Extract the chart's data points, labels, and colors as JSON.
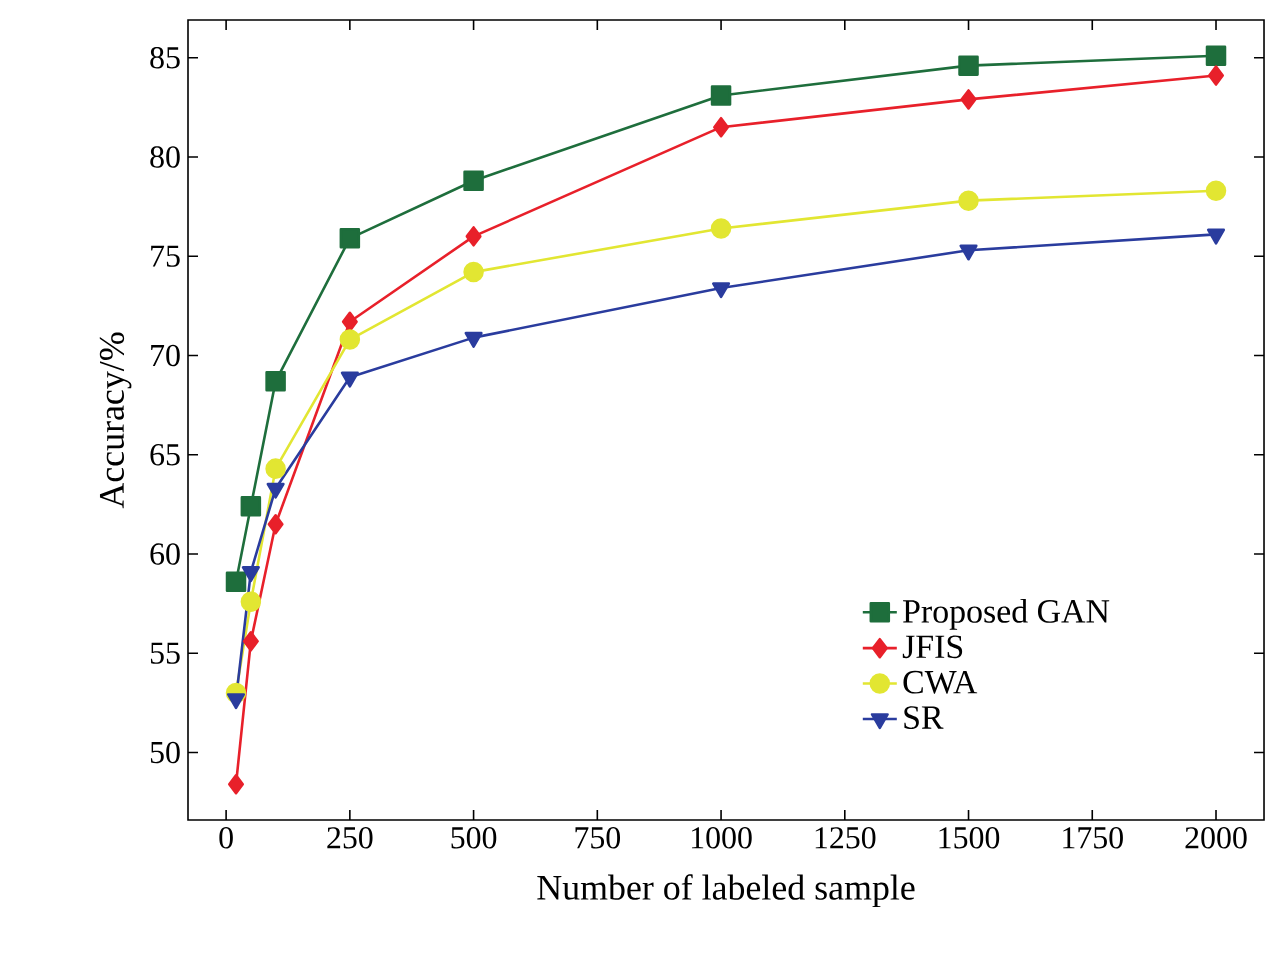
{
  "chart_data": {
    "type": "line",
    "xlabel": "Number of labeled sample",
    "ylabel": "Accuracy/%",
    "x": [
      20,
      50,
      100,
      250,
      500,
      1000,
      1500,
      2000
    ],
    "series": [
      {
        "name": "Proposed GAN",
        "color": "#1e6e3c",
        "marker": "square",
        "values": [
          58.6,
          62.4,
          68.7,
          75.9,
          78.8,
          83.1,
          84.6,
          85.1
        ]
      },
      {
        "name": "JFIS",
        "color": "#e8202a",
        "marker": "diamond",
        "values": [
          48.4,
          55.6,
          61.5,
          71.7,
          76.0,
          81.5,
          82.9,
          84.1
        ]
      },
      {
        "name": "CWA",
        "color": "#e2e632",
        "marker": "circle",
        "values": [
          53.0,
          57.6,
          64.3,
          70.8,
          74.2,
          76.4,
          77.8,
          78.3
        ]
      },
      {
        "name": "SR",
        "color": "#2a3c9e",
        "marker": "triangle",
        "values": [
          52.7,
          59.1,
          63.3,
          68.9,
          70.9,
          73.4,
          75.3,
          76.1
        ]
      }
    ],
    "xlim": [
      -77,
      2097
    ],
    "ylim": [
      46.6,
      86.9
    ],
    "xticks": [
      0,
      250,
      500,
      750,
      1000,
      1250,
      1500,
      1750,
      2000
    ],
    "yticks": [
      50,
      55,
      60,
      65,
      70,
      75,
      80,
      85
    ],
    "legend": "bottom right",
    "grid": false
  }
}
